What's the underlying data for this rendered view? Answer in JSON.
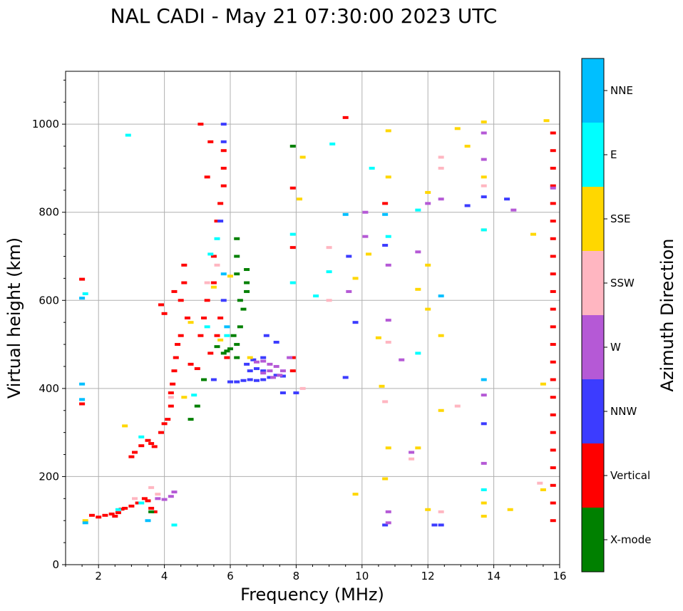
{
  "chart_data": {
    "type": "scatter",
    "title": "NAL CADI - May 21 07:30:00 2023 UTC",
    "xlabel": "Frequency (MHz)",
    "ylabel": "Virtual height (km)",
    "xlim": [
      1,
      16
    ],
    "ylim": [
      0,
      1120
    ],
    "xticks": [
      2,
      4,
      6,
      8,
      10,
      12,
      14,
      16
    ],
    "yticks": [
      0,
      200,
      400,
      600,
      800,
      1000
    ],
    "grid": true,
    "colorbar": {
      "label": "Azimuth Direction",
      "categories": [
        {
          "name": "X-mode",
          "color": "#008000"
        },
        {
          "name": "Vertical",
          "color": "#ff0000"
        },
        {
          "name": "NNW",
          "color": "#3c3cff"
        },
        {
          "name": "W",
          "color": "#b559d6"
        },
        {
          "name": "SSW",
          "color": "#ffb6c1"
        },
        {
          "name": "SSE",
          "color": "#ffd700"
        },
        {
          "name": "E",
          "color": "#00ffff"
        },
        {
          "name": "NNE",
          "color": "#00bfff"
        }
      ]
    },
    "series": [
      {
        "name": "Vertical",
        "color": "#ff0000",
        "points": [
          [
            1.5,
            648
          ],
          [
            1.5,
            365
          ],
          [
            1.8,
            112
          ],
          [
            2.0,
            108
          ],
          [
            2.2,
            112
          ],
          [
            2.4,
            115
          ],
          [
            2.5,
            110
          ],
          [
            2.6,
            118
          ],
          [
            2.7,
            126
          ],
          [
            2.8,
            128
          ],
          [
            3.0,
            133
          ],
          [
            3.2,
            140
          ],
          [
            3.4,
            150
          ],
          [
            3.5,
            145
          ],
          [
            3.6,
            128
          ],
          [
            3.7,
            120
          ],
          [
            3.0,
            245
          ],
          [
            3.1,
            255
          ],
          [
            3.3,
            270
          ],
          [
            3.5,
            282
          ],
          [
            3.6,
            275
          ],
          [
            3.7,
            268
          ],
          [
            3.9,
            300
          ],
          [
            4.0,
            320
          ],
          [
            4.1,
            330
          ],
          [
            4.2,
            360
          ],
          [
            4.2,
            390
          ],
          [
            4.25,
            410
          ],
          [
            4.3,
            440
          ],
          [
            4.35,
            470
          ],
          [
            4.4,
            500
          ],
          [
            4.5,
            520
          ],
          [
            4.5,
            600
          ],
          [
            4.6,
            640
          ],
          [
            4.6,
            680
          ],
          [
            4.7,
            560
          ],
          [
            4.8,
            455
          ],
          [
            5.0,
            445
          ],
          [
            5.1,
            520
          ],
          [
            5.2,
            560
          ],
          [
            5.3,
            600
          ],
          [
            5.4,
            480
          ],
          [
            5.5,
            640
          ],
          [
            5.6,
            520
          ],
          [
            5.7,
            560
          ],
          [
            5.5,
            700
          ],
          [
            5.6,
            780
          ],
          [
            5.7,
            820
          ],
          [
            5.8,
            860
          ],
          [
            5.8,
            900
          ],
          [
            5.8,
            940
          ],
          [
            5.1,
            1000
          ],
          [
            5.3,
            880
          ],
          [
            5.4,
            960
          ],
          [
            5.9,
            470
          ],
          [
            3.9,
            590
          ],
          [
            4.0,
            570
          ],
          [
            4.3,
            620
          ],
          [
            7.9,
            440
          ],
          [
            7.9,
            470
          ],
          [
            7.9,
            720
          ],
          [
            7.9,
            855
          ],
          [
            10.7,
            820
          ],
          [
            15.8,
            980
          ],
          [
            15.8,
            940
          ],
          [
            15.8,
            900
          ],
          [
            15.8,
            860
          ],
          [
            15.8,
            820
          ],
          [
            15.8,
            780
          ],
          [
            15.8,
            740
          ],
          [
            15.8,
            700
          ],
          [
            15.8,
            660
          ],
          [
            15.8,
            620
          ],
          [
            15.8,
            580
          ],
          [
            15.8,
            540
          ],
          [
            15.8,
            500
          ],
          [
            15.8,
            460
          ],
          [
            15.8,
            420
          ],
          [
            15.8,
            380
          ],
          [
            15.8,
            340
          ],
          [
            15.8,
            300
          ],
          [
            15.8,
            260
          ],
          [
            15.8,
            220
          ],
          [
            15.8,
            180
          ],
          [
            15.8,
            140
          ],
          [
            15.8,
            100
          ],
          [
            9.5,
            1015
          ]
        ]
      },
      {
        "name": "X-mode",
        "color": "#008000",
        "points": [
          [
            3.6,
            120
          ],
          [
            5.2,
            420
          ],
          [
            4.8,
            330
          ],
          [
            5.0,
            360
          ],
          [
            6.2,
            740
          ],
          [
            6.2,
            700
          ],
          [
            6.2,
            660
          ],
          [
            6.3,
            600
          ],
          [
            6.4,
            580
          ],
          [
            6.3,
            540
          ],
          [
            6.2,
            500
          ],
          [
            6.0,
            490
          ],
          [
            5.9,
            485
          ],
          [
            5.8,
            480
          ],
          [
            5.6,
            495
          ],
          [
            6.5,
            670
          ],
          [
            6.5,
            640
          ],
          [
            6.5,
            620
          ],
          [
            6.1,
            520
          ],
          [
            6.2,
            470
          ],
          [
            7.9,
            950
          ]
        ]
      },
      {
        "name": "NNW",
        "color": "#3c3cff",
        "points": [
          [
            6.0,
            415
          ],
          [
            6.2,
            415
          ],
          [
            6.4,
            418
          ],
          [
            6.6,
            420
          ],
          [
            6.8,
            418
          ],
          [
            7.0,
            420
          ],
          [
            7.2,
            425
          ],
          [
            7.4,
            430
          ],
          [
            7.6,
            428
          ],
          [
            6.6,
            440
          ],
          [
            6.8,
            445
          ],
          [
            7.0,
            440
          ],
          [
            6.5,
            455
          ],
          [
            6.7,
            465
          ],
          [
            7.0,
            470
          ],
          [
            5.8,
            1000
          ],
          [
            5.8,
            960
          ],
          [
            5.7,
            780
          ],
          [
            5.8,
            600
          ],
          [
            5.5,
            420
          ],
          [
            7.1,
            520
          ],
          [
            7.4,
            505
          ],
          [
            7.6,
            390
          ],
          [
            8.0,
            390
          ],
          [
            9.5,
            425
          ],
          [
            9.6,
            700
          ],
          [
            10.7,
            725
          ],
          [
            12.2,
            90
          ],
          [
            12.4,
            90
          ],
          [
            13.7,
            320
          ],
          [
            14.4,
            830
          ],
          [
            13.7,
            835
          ],
          [
            13.2,
            815
          ],
          [
            10.7,
            90
          ],
          [
            9.8,
            550
          ]
        ]
      },
      {
        "name": "W",
        "color": "#b559d6",
        "points": [
          [
            7.0,
            435
          ],
          [
            7.2,
            440
          ],
          [
            7.4,
            450
          ],
          [
            7.6,
            440
          ],
          [
            7.3,
            425
          ],
          [
            7.5,
            430
          ],
          [
            7.2,
            455
          ],
          [
            7.0,
            462
          ],
          [
            6.8,
            460
          ],
          [
            3.8,
            150
          ],
          [
            4.0,
            148
          ],
          [
            4.2,
            155
          ],
          [
            4.3,
            165
          ],
          [
            7.8,
            470
          ],
          [
            10.1,
            800
          ],
          [
            10.8,
            680
          ],
          [
            10.8,
            555
          ],
          [
            11.2,
            465
          ],
          [
            11.5,
            255
          ],
          [
            11.7,
            710
          ],
          [
            12.0,
            820
          ],
          [
            12.4,
            830
          ],
          [
            13.7,
            920
          ],
          [
            13.7,
            980
          ],
          [
            14.6,
            805
          ],
          [
            15.8,
            855
          ],
          [
            10.8,
            120
          ],
          [
            10.8,
            95
          ],
          [
            9.6,
            620
          ],
          [
            10.1,
            745
          ],
          [
            13.7,
            230
          ],
          [
            13.7,
            385
          ]
        ]
      },
      {
        "name": "SSW",
        "color": "#ffb6c1",
        "points": [
          [
            3.6,
            175
          ],
          [
            3.8,
            160
          ],
          [
            4.2,
            380
          ],
          [
            3.1,
            150
          ],
          [
            5.3,
            640
          ],
          [
            5.6,
            680
          ],
          [
            8.2,
            400
          ],
          [
            9.0,
            720
          ],
          [
            9.0,
            600
          ],
          [
            10.8,
            505
          ],
          [
            10.7,
            370
          ],
          [
            11.5,
            240
          ],
          [
            12.4,
            925
          ],
          [
            12.4,
            900
          ],
          [
            12.4,
            120
          ],
          [
            12.9,
            360
          ],
          [
            15.4,
            185
          ],
          [
            13.7,
            860
          ]
        ]
      },
      {
        "name": "SSE",
        "color": "#ffd700",
        "points": [
          [
            4.8,
            550
          ],
          [
            5.5,
            630
          ],
          [
            5.7,
            510
          ],
          [
            6.0,
            655
          ],
          [
            6.6,
            470
          ],
          [
            4.6,
            380
          ],
          [
            2.8,
            315
          ],
          [
            1.6,
            100
          ],
          [
            8.2,
            925
          ],
          [
            8.1,
            830
          ],
          [
            9.8,
            650
          ],
          [
            9.8,
            160
          ],
          [
            10.2,
            705
          ],
          [
            10.5,
            515
          ],
          [
            10.6,
            405
          ],
          [
            10.8,
            985
          ],
          [
            10.8,
            880
          ],
          [
            12.0,
            680
          ],
          [
            12.0,
            580
          ],
          [
            12.0,
            125
          ],
          [
            12.0,
            845
          ],
          [
            12.4,
            520
          ],
          [
            12.4,
            350
          ],
          [
            12.9,
            990
          ],
          [
            13.2,
            950
          ],
          [
            13.7,
            1005
          ],
          [
            13.7,
            880
          ],
          [
            13.7,
            760
          ],
          [
            13.7,
            140
          ],
          [
            13.7,
            110
          ],
          [
            14.5,
            125
          ],
          [
            15.2,
            750
          ],
          [
            15.5,
            410
          ],
          [
            15.6,
            1008
          ],
          [
            15.5,
            170
          ],
          [
            11.7,
            625
          ],
          [
            11.7,
            265
          ],
          [
            10.8,
            265
          ],
          [
            10.7,
            195
          ]
        ]
      },
      {
        "name": "E",
        "color": "#00ffff",
        "points": [
          [
            1.6,
            615
          ],
          [
            2.6,
            125
          ],
          [
            3.3,
            140
          ],
          [
            4.3,
            90
          ],
          [
            5.4,
            705
          ],
          [
            5.6,
            740
          ],
          [
            5.9,
            520
          ],
          [
            5.3,
            540
          ],
          [
            7.9,
            750
          ],
          [
            7.9,
            640
          ],
          [
            8.6,
            610
          ],
          [
            9.0,
            665
          ],
          [
            9.1,
            955
          ],
          [
            10.3,
            900
          ],
          [
            10.8,
            745
          ],
          [
            11.7,
            805
          ],
          [
            11.7,
            480
          ],
          [
            13.7,
            170
          ],
          [
            13.7,
            760
          ],
          [
            2.9,
            975
          ],
          [
            4.9,
            385
          ],
          [
            3.3,
            290
          ]
        ]
      },
      {
        "name": "NNE",
        "color": "#00bfff",
        "points": [
          [
            1.5,
            605
          ],
          [
            1.5,
            410
          ],
          [
            1.5,
            375
          ],
          [
            1.6,
            95
          ],
          [
            3.5,
            100
          ],
          [
            5.8,
            660
          ],
          [
            5.9,
            540
          ],
          [
            10.7,
            795
          ],
          [
            13.7,
            420
          ],
          [
            9.5,
            795
          ],
          [
            12.4,
            610
          ]
        ]
      }
    ]
  }
}
